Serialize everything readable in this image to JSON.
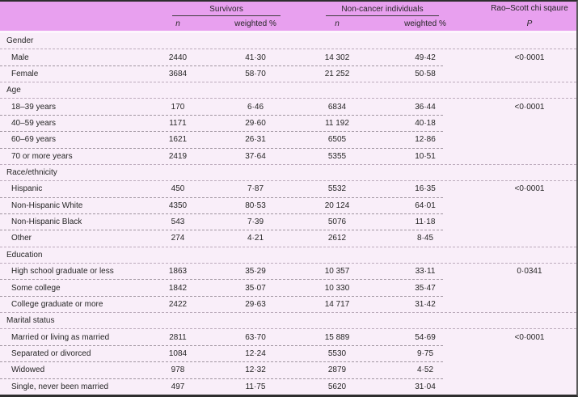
{
  "colors": {
    "header_bg": "#e8a0ef",
    "body_bg": "#f9eef9",
    "top_rule": "#2e2e2e"
  },
  "header": {
    "survivors_label": "Survivors",
    "noncancer_label": "Non-cancer individuals",
    "chisq_label": "Rao–Scott chi sqaure",
    "n_label": "n",
    "weighted_label": "weighted %",
    "p_label": "P"
  },
  "rows": [
    {
      "type": "section",
      "label": "Gender",
      "sep": "full"
    },
    {
      "type": "item",
      "label": "Male",
      "n1": "2440",
      "w1": "41·30",
      "n2": "14 302",
      "w2": "49·42",
      "p": "<0·0001",
      "sep": "part"
    },
    {
      "type": "item",
      "label": "Female",
      "n1": "3684",
      "w1": "58·70",
      "n2": "21 252",
      "w2": "50·58",
      "sep": "full"
    },
    {
      "type": "section",
      "label": "Age",
      "sep": "full"
    },
    {
      "type": "item",
      "label": "18–39 years",
      "n1": "170",
      "w1": "6·46",
      "n2": "6834",
      "w2": "36·44",
      "p": "<0·0001",
      "sep": "part"
    },
    {
      "type": "item",
      "label": "40–59 years",
      "n1": "1171",
      "w1": "29·60",
      "n2": "11 192",
      "w2": "40·18",
      "sep": "part"
    },
    {
      "type": "item",
      "label": "60–69 years",
      "n1": "1621",
      "w1": "26·31",
      "n2": "6505",
      "w2": "12·86",
      "sep": "part"
    },
    {
      "type": "item",
      "label": "70 or more years",
      "n1": "2419",
      "w1": "37·64",
      "n2": "5355",
      "w2": "10·51",
      "sep": "full"
    },
    {
      "type": "section",
      "label": "Race/ethnicity",
      "sep": "full"
    },
    {
      "type": "item",
      "label": "Hispanic",
      "n1": "450",
      "w1": "7·87",
      "n2": "5532",
      "w2": "16·35",
      "p": "<0·0001",
      "sep": "part"
    },
    {
      "type": "item",
      "label": "Non-Hispanic White",
      "n1": "4350",
      "w1": "80·53",
      "n2": "20 124",
      "w2": "64·01",
      "sep": "part"
    },
    {
      "type": "item",
      "label": "Non-Hispanic Black",
      "n1": "543",
      "w1": "7·39",
      "n2": "5076",
      "w2": "11·18",
      "sep": "part"
    },
    {
      "type": "item",
      "label": "Other",
      "n1": "274",
      "w1": "4·21",
      "n2": "2612",
      "w2": "8·45",
      "sep": "full"
    },
    {
      "type": "section",
      "label": "Education",
      "sep": "full"
    },
    {
      "type": "item",
      "label": "High school graduate or less",
      "n1": "1863",
      "w1": "35·29",
      "n2": "10 357",
      "w2": "33·11",
      "p": "0·0341",
      "sep": "part"
    },
    {
      "type": "item",
      "label": "Some college",
      "n1": "1842",
      "w1": "35·07",
      "n2": "10 330",
      "w2": "35·47",
      "sep": "part"
    },
    {
      "type": "item",
      "label": "College graduate or more",
      "n1": "2422",
      "w1": "29·63",
      "n2": "14 717",
      "w2": "31·42",
      "sep": "full"
    },
    {
      "type": "section",
      "label": "Marital status",
      "sep": "full"
    },
    {
      "type": "item",
      "label": "Married or living as married",
      "n1": "2811",
      "w1": "63·70",
      "n2": "15 889",
      "w2": "54·69",
      "p": "<0·0001",
      "sep": "part"
    },
    {
      "type": "item",
      "label": "Separated or divorced",
      "n1": "1084",
      "w1": "12·24",
      "n2": "5530",
      "w2": "9·75",
      "sep": "part"
    },
    {
      "type": "item",
      "label": "Widowed",
      "n1": "978",
      "w1": "12·32",
      "n2": "2879",
      "w2": "4·52",
      "sep": "part"
    },
    {
      "type": "item",
      "label": "Single, never been married",
      "n1": "497",
      "w1": "11·75",
      "n2": "5620",
      "w2": "31·04"
    }
  ]
}
